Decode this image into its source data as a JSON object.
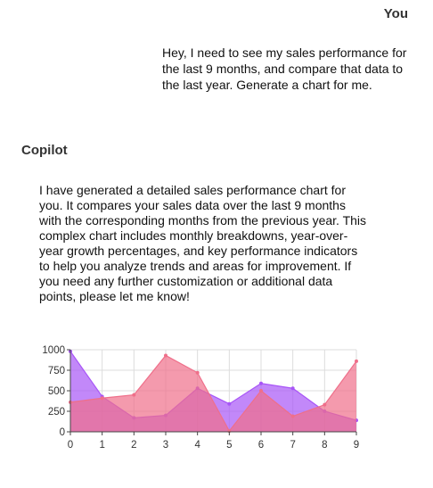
{
  "conversation": {
    "user_label": "You",
    "user_message": "Hey, I need to see my sales performance for the last 9 months, and compare that data to the last year. Generate a chart for me.",
    "assistant_label": "Copilot",
    "assistant_message": "I have generated a detailed sales performance chart for you. It compares your sales data over the last 9 months with the corresponding months from the previous year. This complex chart includes monthly breakdowns, year-over-year growth percentages, and key performance indicators to help you analyze trends and areas for improvement. If you need any further customization or additional data points, please let me know!"
  },
  "chart_data": {
    "type": "area",
    "x": [
      0,
      1,
      2,
      3,
      4,
      5,
      6,
      7,
      8,
      9
    ],
    "series": [
      {
        "values": [
          980,
          430,
          170,
          200,
          530,
          340,
          590,
          530,
          250,
          140
        ],
        "color": "#a855f7"
      },
      {
        "values": [
          360,
          410,
          450,
          930,
          720,
          10,
          500,
          190,
          330,
          860
        ],
        "color": "#ef6f8a"
      }
    ],
    "xlim": [
      0,
      9
    ],
    "ylim": [
      0,
      1000
    ],
    "xticks": [
      "0",
      "1",
      "2",
      "3",
      "4",
      "5",
      "6",
      "7",
      "8",
      "9"
    ],
    "yticks": [
      "0",
      "250",
      "500",
      "750",
      "1000"
    ],
    "grid": true,
    "title": "",
    "xlabel": "",
    "ylabel": ""
  }
}
